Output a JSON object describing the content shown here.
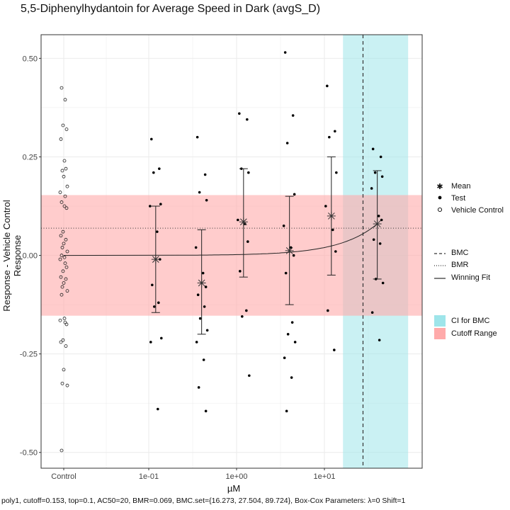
{
  "title": "5,5-Diphenylhydantoin for Average Speed in Dark (avgS_D)",
  "caption": "poly1, cutoff=0.153, top=0.1, AC50=20, BMR=0.069, BMC.set={16.273, 27.504, 89.724}, Box-Cox Parameters: λ=0 Shift=1",
  "colors": {
    "ci_fill": "#9ee5ea",
    "cutoff_fill": "#ffaaaa",
    "panel_border": "#333333",
    "grid": "#ebebeb"
  },
  "legend": {
    "group1": [
      {
        "label": "Mean",
        "icon": "asterisk-icon"
      },
      {
        "label": "Test",
        "icon": "filled-dot-icon"
      },
      {
        "label": "Vehicle Control",
        "icon": "open-circle-icon"
      }
    ],
    "group2": [
      {
        "label": "BMC",
        "icon": "dashed-line-icon"
      },
      {
        "label": "BMR",
        "icon": "dotted-line-icon"
      },
      {
        "label": "Winning Fit",
        "icon": "solid-line-icon"
      }
    ],
    "group3": [
      {
        "label": "CI for BMC",
        "icon": "swatch-ci",
        "color": "#9ee5ea"
      },
      {
        "label": "Cutoff Range",
        "icon": "swatch-cutoff",
        "color": "#ffaaaa"
      }
    ]
  },
  "chart_data": {
    "type": "scatter",
    "xlabel": "µM",
    "ylabel": "Response - Vehicle Control Response",
    "x_scale": "log10",
    "x_tick_labels": [
      "Control",
      "1e-01",
      "1e+00",
      "1e+01"
    ],
    "x_tick_values": [
      null,
      0.1,
      1,
      10
    ],
    "ylim": [
      -0.54,
      0.56
    ],
    "y_ticks": [
      -0.5,
      -0.25,
      0,
      0.25,
      0.5
    ],
    "y_tick_labels": [
      "-0.50",
      "-0.25",
      "0.00",
      "0.25",
      "0.50"
    ],
    "grid": true,
    "legend_position": "right",
    "cutoff_range": [
      -0.153,
      0.153
    ],
    "bmr": 0.069,
    "bmc": 27.504,
    "bmc_ci": [
      16.273,
      89.724
    ],
    "fit": {
      "model": "poly1",
      "top": 0.1,
      "ac50": 20
    },
    "dose_means": [
      {
        "dose": 0.12,
        "mean": -0.01,
        "lower": -0.145,
        "upper": 0.125
      },
      {
        "dose": 0.4,
        "mean": -0.07,
        "lower": -0.2,
        "upper": 0.065
      },
      {
        "dose": 1.2,
        "mean": 0.085,
        "lower": -0.055,
        "upper": 0.22
      },
      {
        "dose": 4.0,
        "mean": 0.012,
        "lower": -0.125,
        "upper": 0.15
      },
      {
        "dose": 12.0,
        "mean": 0.1,
        "lower": -0.05,
        "upper": 0.25
      },
      {
        "dose": 40.0,
        "mean": 0.08,
        "lower": -0.06,
        "upper": 0.215
      }
    ],
    "test_points": [
      {
        "dose": 0.12,
        "values": [
          0.295,
          0.22,
          0.21,
          0.13,
          0.125,
          0.06,
          -0.01,
          -0.075,
          -0.12,
          -0.13,
          -0.21,
          -0.22,
          -0.39
        ]
      },
      {
        "dose": 0.4,
        "values": [
          0.3,
          0.205,
          0.16,
          0.14,
          0.02,
          -0.045,
          -0.08,
          -0.1,
          -0.13,
          -0.16,
          -0.19,
          -0.22,
          -0.265,
          -0.335,
          -0.395
        ]
      },
      {
        "dose": 1.2,
        "values": [
          0.36,
          0.345,
          0.22,
          0.21,
          0.09,
          0.08,
          0.035,
          -0.04,
          -0.14,
          -0.155,
          -0.305
        ]
      },
      {
        "dose": 4.0,
        "values": [
          0.515,
          0.355,
          0.285,
          0.155,
          0.075,
          0.02,
          0.0,
          -0.045,
          -0.17,
          -0.2,
          -0.22,
          -0.26,
          -0.31,
          -0.395
        ]
      },
      {
        "dose": 12.0,
        "values": [
          0.43,
          0.315,
          0.3,
          0.21,
          0.125,
          0.065,
          0.01,
          -0.14,
          -0.24
        ]
      },
      {
        "dose": 40.0,
        "values": [
          0.27,
          0.25,
          0.21,
          0.2,
          0.17,
          0.1,
          0.09,
          0.04,
          0.03,
          -0.06,
          -0.07,
          -0.145,
          -0.215
        ]
      }
    ],
    "vehicle_control": [
      0.425,
      0.395,
      0.33,
      0.32,
      0.295,
      0.24,
      0.22,
      0.215,
      0.2,
      0.175,
      0.16,
      0.15,
      0.135,
      0.125,
      0.12,
      0.06,
      0.05,
      0.04,
      0.03,
      0.02,
      0.01,
      0.0,
      -0.005,
      -0.01,
      -0.02,
      -0.03,
      -0.04,
      -0.055,
      -0.06,
      -0.07,
      -0.08,
      -0.09,
      -0.1,
      -0.16,
      -0.165,
      -0.17,
      -0.175,
      -0.215,
      -0.22,
      -0.23,
      -0.29,
      -0.325,
      -0.33,
      -0.495
    ]
  }
}
